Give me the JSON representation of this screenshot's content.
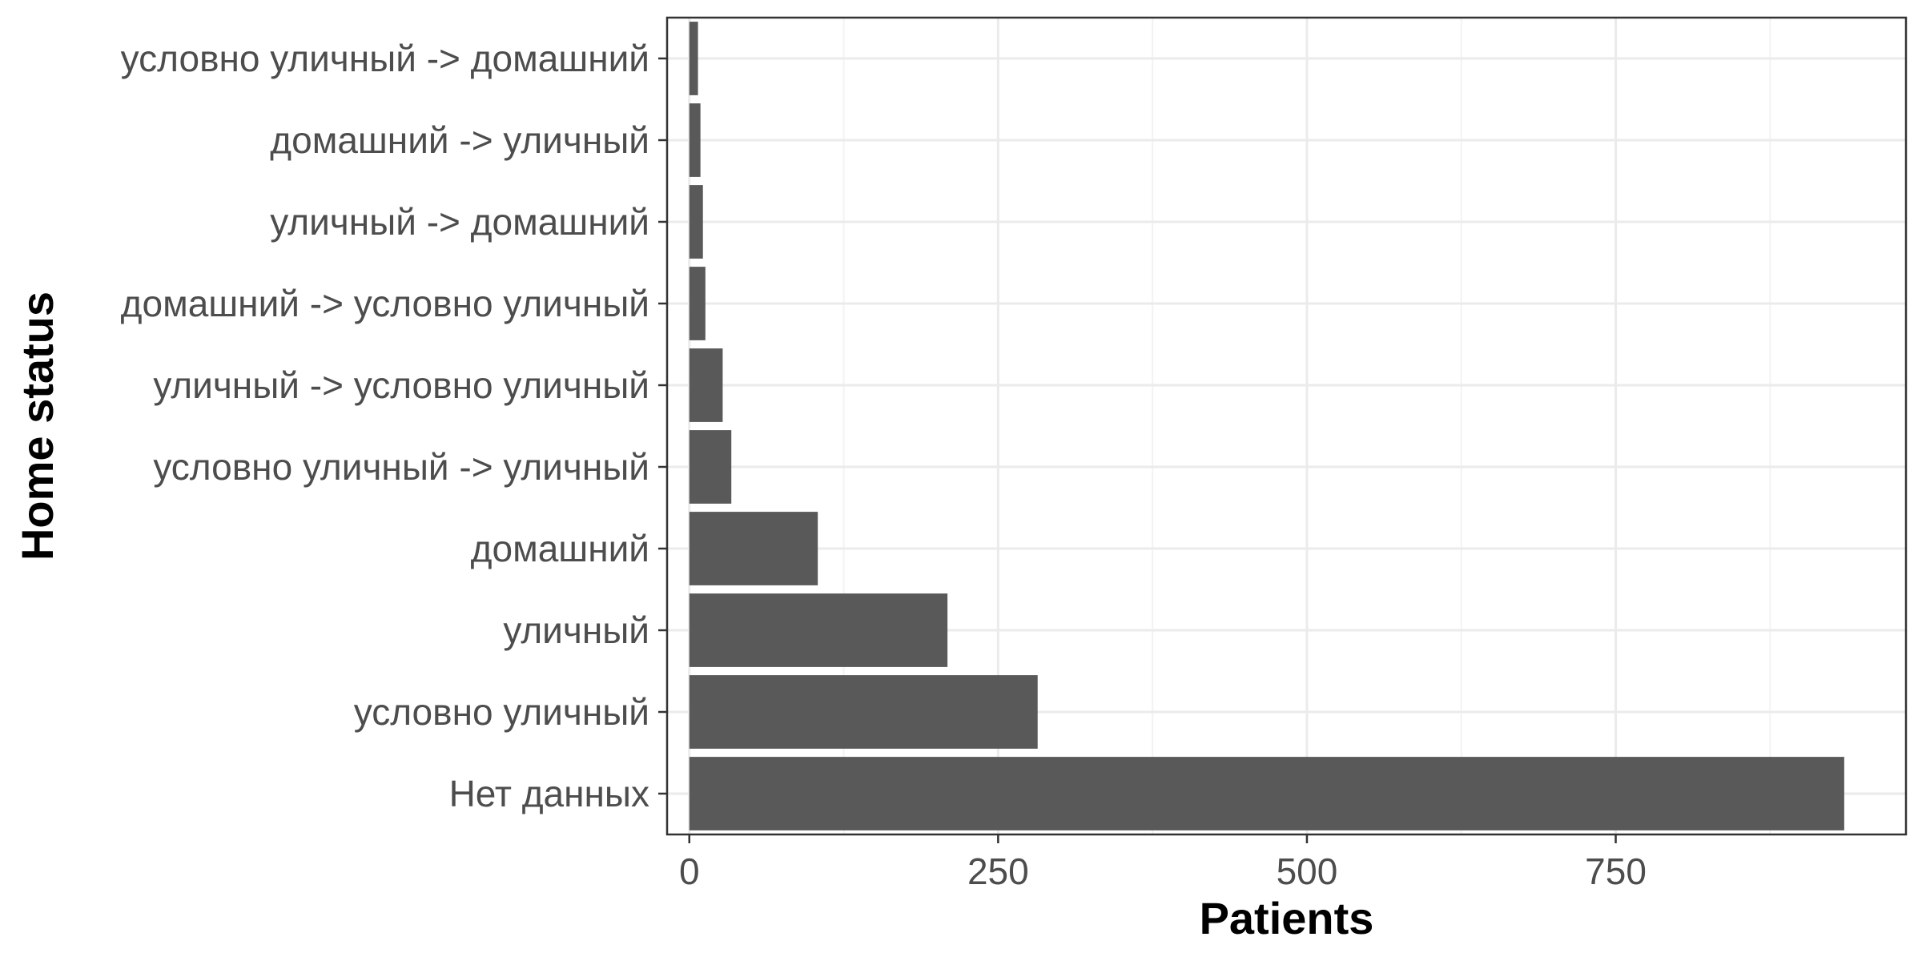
{
  "chart_data": {
    "type": "bar",
    "orientation": "horizontal",
    "title": "",
    "xlabel": "Patients",
    "ylabel": "Home status",
    "categories": [
      "Нет данных",
      "условно уличный",
      "уличный",
      "домашний",
      "условно уличный -> уличный",
      "уличный -> условно уличный",
      "домашний -> условно уличный",
      "уличный -> домашний",
      "домашний -> уличный",
      "условно уличный -> домашний"
    ],
    "values": [
      935,
      282,
      209,
      104,
      34,
      27,
      13,
      11,
      9,
      7
    ],
    "xlim": [
      -18,
      985
    ],
    "xticks": [
      0,
      250,
      500,
      750
    ],
    "xtick_labels": [
      "0",
      "250",
      "500",
      "750"
    ],
    "grid": true,
    "legend": "none",
    "colors": {
      "bar": "#595959",
      "panel_border": "#333333",
      "grid_major": "#ebebeb",
      "grid_minor": "#f3f3f3",
      "tick_text": "#4d4d4d",
      "tick_mark": "#333333"
    }
  }
}
